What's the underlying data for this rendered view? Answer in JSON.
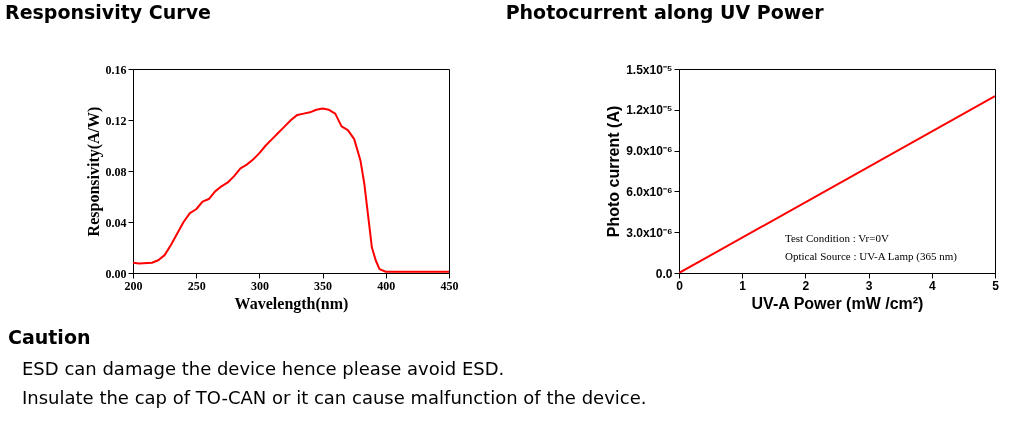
{
  "chart_data": [
    {
      "type": "line",
      "title": "Responsivity Curve",
      "xlabel": "Wavelength(nm)",
      "ylabel": "Responsivity(A/W)",
      "xlim": [
        200,
        450
      ],
      "ylim": [
        0,
        0.16
      ],
      "xticks": [
        200,
        250,
        300,
        350,
        400,
        450
      ],
      "yticks": [
        {
          "value": 0,
          "label": "0.00"
        },
        {
          "value": 0.04,
          "label": "0.04"
        },
        {
          "value": 0.08,
          "label": "0.08"
        },
        {
          "value": 0.12,
          "label": "0.12"
        },
        {
          "value": 0.16,
          "label": "0.16"
        }
      ],
      "grid": false,
      "marker": "none",
      "line_style": "solid",
      "series": [
        {
          "color": "#ff0000",
          "x": [
            200,
            205,
            215,
            220,
            225,
            230,
            235,
            240,
            245,
            250,
            255,
            260,
            265,
            270,
            275,
            280,
            285,
            290,
            295,
            300,
            305,
            310,
            315,
            320,
            325,
            330,
            335,
            340,
            345,
            350,
            355,
            360,
            365,
            370,
            375,
            380,
            383,
            386,
            389,
            392,
            395,
            400,
            450
          ],
          "values": [
            0.008,
            0.0075,
            0.008,
            0.01,
            0.014,
            0.022,
            0.031,
            0.04,
            0.047,
            0.05,
            0.056,
            0.058,
            0.064,
            0.068,
            0.071,
            0.076,
            0.082,
            0.085,
            0.089,
            0.094,
            0.1,
            0.105,
            0.11,
            0.115,
            0.12,
            0.124,
            0.125,
            0.126,
            0.128,
            0.129,
            0.128,
            0.125,
            0.115,
            0.112,
            0.105,
            0.088,
            0.07,
            0.045,
            0.02,
            0.01,
            0.003,
            0.001,
            0.001
          ]
        }
      ]
    },
    {
      "type": "line",
      "title": "Photocurrent along UV Power",
      "xlabel": "UV-A Power (mW /cm²)",
      "ylabel": "Photo current (A)",
      "xlim": [
        0,
        5
      ],
      "ylim": [
        0,
        1.5e-05
      ],
      "xticks": [
        0,
        1,
        2,
        3,
        4,
        5
      ],
      "yticks": [
        {
          "value": 0,
          "label": "0.0"
        },
        {
          "value": 3e-06,
          "label": "3.0x10⁻⁶"
        },
        {
          "value": 6e-06,
          "label": "6.0x10⁻⁶"
        },
        {
          "value": 9e-06,
          "label": "9.0x10⁻⁶"
        },
        {
          "value": 1.2e-05,
          "label": "1.2x10⁻⁵"
        },
        {
          "value": 1.5e-05,
          "label": "1.5x10⁻⁵"
        }
      ],
      "grid": false,
      "marker": "none",
      "line_style": "solid",
      "annotations": [
        "Test Condition : Vr=0V",
        "Optical Source : UV-A Lamp (365 nm)"
      ],
      "series": [
        {
          "color": "#ff0000",
          "x": [
            0,
            5
          ],
          "values": [
            0,
            1.3e-05
          ]
        }
      ]
    },
    {
      "type": "other",
      "title": "Caution",
      "annotations": [
        "ESD can damage the device hence please avoid ESD.",
        "Insulate the cap of TO-CAN or it can cause malfunction of the device."
      ]
    }
  ]
}
